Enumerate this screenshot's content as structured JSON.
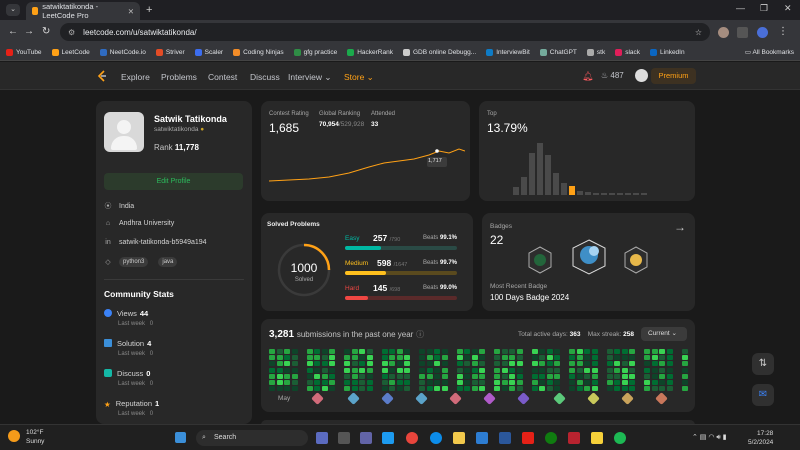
{
  "browser": {
    "tab_title": "satwiktatikonda - LeetCode Pro",
    "url": "leetcode.com/u/satwiktatikonda/",
    "bookmarks": [
      "YouTube",
      "LeetCode",
      "NeetCode.io",
      "Striver",
      "Scaler",
      "Coding Ninjas",
      "gfg practice",
      "HackerRank",
      "GDB online Debugg...",
      "InterviewBit",
      "ChatGPT",
      "stk",
      "slack",
      "LinkedIn"
    ],
    "all_bookmarks": "All Bookmarks"
  },
  "nav": {
    "links": [
      "Explore",
      "Problems",
      "Contest",
      "Discuss",
      "Interview ⌄",
      "Store ⌄"
    ],
    "streak": "487",
    "premium": "Premium"
  },
  "profile": {
    "name": "Satwik Tatikonda",
    "username": "satwiktatikonda",
    "rank_label": "Rank",
    "rank_value": "11,778",
    "edit_button": "Edit Profile",
    "country": "India",
    "university": "Andhra University",
    "linkedin": "satwik-tatikonda-b5949a194",
    "tags": [
      "python3",
      "java"
    ]
  },
  "community": {
    "title": "Community Stats",
    "items": [
      {
        "label": "Views",
        "value": "44",
        "sub": "Last week",
        "sub_value": "0"
      },
      {
        "label": "Solution",
        "value": "4",
        "sub": "Last week",
        "sub_value": "0"
      },
      {
        "label": "Discuss",
        "value": "0",
        "sub": "Last week",
        "sub_value": "0"
      },
      {
        "label": "Reputation",
        "value": "1",
        "sub": "Last week",
        "sub_value": "0"
      }
    ]
  },
  "contest": {
    "rating_label": "Contest Rating",
    "rating": "1,685",
    "ranking_label": "Global Ranking",
    "ranking": "70,954",
    "ranking_total": "/529,928",
    "attended_label": "Attended",
    "attended": "33",
    "tooltip": "1,717",
    "top_label": "Top",
    "top_value": "13.79%"
  },
  "solved": {
    "title": "Solved Problems",
    "total": "1000",
    "total_label": "Solved",
    "difficulties": [
      {
        "name": "Easy",
        "count": "257",
        "total": "/790",
        "beats_label": "Beats",
        "beats": "99.1%",
        "color": "#00b8a3",
        "bg": "#2a4a45",
        "fraction": 0.325
      },
      {
        "name": "Medium",
        "count": "598",
        "total": "/1647",
        "beats_label": "Beats",
        "beats": "99.7%",
        "color": "#ffc01e",
        "bg": "#5a4a1e",
        "fraction": 0.363
      },
      {
        "name": "Hard",
        "count": "145",
        "total": "/698",
        "beats_label": "Beats",
        "beats": "99.0%",
        "color": "#ef4743",
        "bg": "#5a2a2a",
        "fraction": 0.208
      }
    ]
  },
  "badges": {
    "label": "Badges",
    "count": "22",
    "recent_label": "Most Recent Badge",
    "recent": "100 Days Badge 2024"
  },
  "submissions": {
    "count": "3,281",
    "text": "submissions in the past one year",
    "active_label": "Total active days:",
    "active": "363",
    "streak_label": "Max streak:",
    "streak": "258",
    "select": "Current ⌄",
    "month": "May"
  },
  "taskbar": {
    "temp": "102°F",
    "condition": "Sunny",
    "search": "Search",
    "time": "17:28",
    "date": "5/2/2024"
  }
}
